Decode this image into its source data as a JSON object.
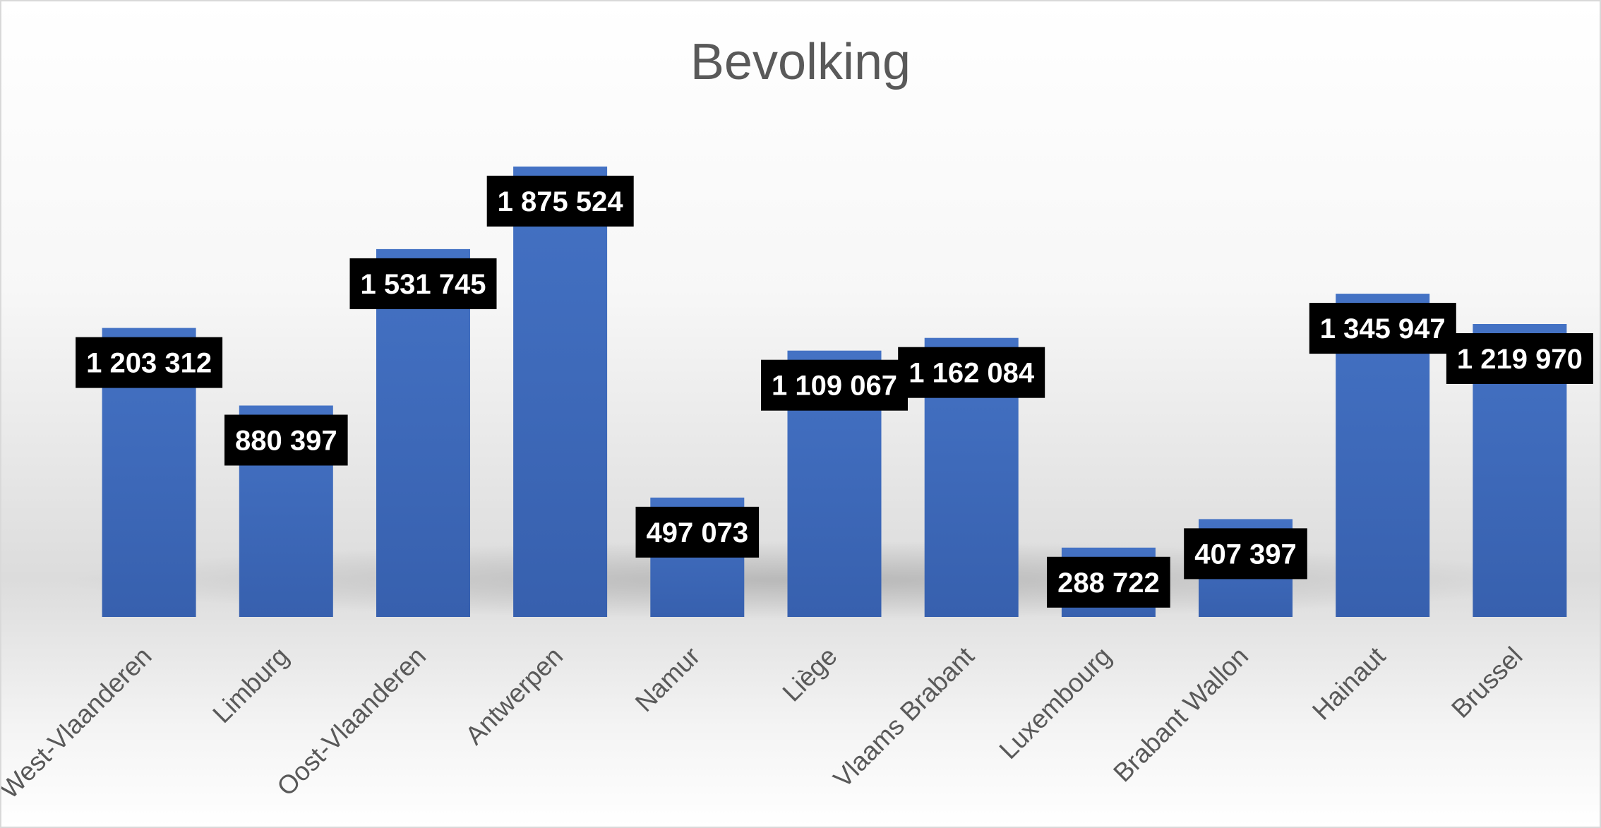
{
  "chart_data": {
    "type": "bar",
    "title": "Bevolking",
    "categories": [
      "West-Vlaanderen",
      "Limburg",
      "Oost-Vlaanderen",
      "Antwerpen",
      "Namur",
      "Liège",
      "Vlaams Brabant",
      "Luxembourg",
      "Brabant Wallon",
      "Hainaut",
      "Brussel"
    ],
    "values": [
      1203312,
      880397,
      1531745,
      1875524,
      497073,
      1109067,
      1162084,
      288722,
      407397,
      1345947,
      1219970
    ],
    "data_labels": [
      "1 203 312",
      "880 397",
      "1 531 745",
      "1 875 524",
      "497 073",
      "1 109 067",
      "1 162 084",
      "288 722",
      "407 397",
      "1 345 947",
      "1 219 970"
    ],
    "ylim": [
      0,
      2000000
    ],
    "grid": false,
    "legend": "none",
    "bar_color": "#4472C4",
    "label_background": "#000000",
    "label_color": "#FFFFFF"
  }
}
